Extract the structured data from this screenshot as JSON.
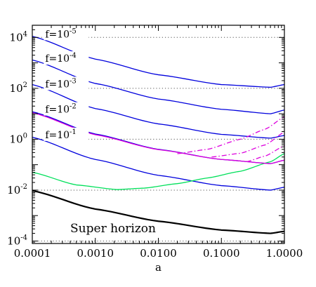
{
  "chart_data": {
    "type": "line",
    "title": "",
    "xlabel": "a",
    "ylabel": "",
    "x_scale": "log",
    "y_scale": "log",
    "xlim": [
      0.0001,
      1.0
    ],
    "ylim": [
      8e-05,
      30000
    ],
    "x_ticks": [
      {
        "value": 0.0001,
        "label": "0.0001"
      },
      {
        "value": 0.001,
        "label": "0.0010"
      },
      {
        "value": 0.01,
        "label": "0.0100"
      },
      {
        "value": 0.1,
        "label": "0.1000"
      },
      {
        "value": 1.0,
        "label": "1.0000"
      }
    ],
    "y_ticks": [
      {
        "value": 0.0001,
        "base": "10",
        "exp": "-4"
      },
      {
        "value": 0.01,
        "base": "10",
        "exp": "-2"
      },
      {
        "value": 1,
        "base": "10",
        "exp": "0"
      },
      {
        "value": 100,
        "base": "10",
        "exp": "2"
      },
      {
        "value": 10000,
        "base": "10",
        "exp": "4"
      }
    ],
    "reference_lines": {
      "style": "dotted",
      "color": "#555555",
      "values": [
        0.0001,
        0.01,
        1,
        100,
        10000
      ]
    },
    "series": [
      {
        "color": "#0000dd",
        "style": "solid",
        "x": [
          0.0001,
          0.001,
          0.01,
          0.1,
          0.6,
          1.0
        ],
        "y": [
          11000,
          1400,
          340,
          140,
          110,
          140
        ]
      },
      {
        "color": "#0000dd",
        "style": "solid",
        "x": [
          0.0001,
          0.001,
          0.01,
          0.1,
          0.6,
          1.0
        ],
        "y": [
          1300,
          155,
          38,
          15,
          10,
          14
        ]
      },
      {
        "color": "#0000dd",
        "style": "solid",
        "x": [
          0.0001,
          0.001,
          0.01,
          0.1,
          0.6,
          1.0
        ],
        "y": [
          140,
          16,
          4,
          1.55,
          1.1,
          1.4
        ]
      },
      {
        "color": "#0000dd",
        "style": "solid",
        "x": [
          0.0001,
          0.001,
          0.01,
          0.1,
          0.6,
          1.0
        ],
        "y": [
          12,
          1.6,
          0.4,
          0.16,
          0.11,
          0.15
        ]
      },
      {
        "color": "#0000dd",
        "style": "solid",
        "x": [
          0.0001,
          0.001,
          0.01,
          0.1,
          0.6,
          1.0
        ],
        "y": [
          1.2,
          0.16,
          0.038,
          0.015,
          0.01,
          0.013
        ]
      },
      {
        "color": "#00e05a",
        "style": "solid",
        "x": [
          0.0001,
          0.0005,
          0.0022,
          0.006,
          0.02,
          0.06,
          0.2,
          0.6,
          1.0
        ],
        "y": [
          0.05,
          0.016,
          0.0105,
          0.012,
          0.018,
          0.03,
          0.055,
          0.13,
          0.27
        ]
      },
      {
        "color": "#000000",
        "style": "solid",
        "width": 2.2,
        "x": [
          0.0001,
          0.001,
          0.01,
          0.1,
          0.6,
          1.0
        ],
        "y": [
          0.0095,
          0.0018,
          0.0006,
          0.00027,
          0.0002,
          0.00024
        ]
      },
      {
        "color": "#dd00dd",
        "style": "solid",
        "x": [
          0.0001,
          0.001,
          0.01,
          0.1,
          0.6,
          1.0
        ],
        "y": [
          11,
          1.5,
          0.39,
          0.16,
          0.11,
          0.15
        ]
      },
      {
        "color": "#dd00dd",
        "style": "dashdot",
        "x": [
          0.02,
          0.06,
          0.2,
          0.5,
          1.0
        ],
        "y": [
          0.27,
          0.4,
          1.0,
          2.5,
          7.5
        ]
      },
      {
        "color": "#dd00dd",
        "style": "dashdot",
        "x": [
          0.07,
          0.2,
          0.5,
          1.0
        ],
        "y": [
          0.2,
          0.28,
          0.6,
          1.9
        ]
      },
      {
        "color": "#dd00dd",
        "style": "dashdot",
        "x": [
          0.25,
          0.5,
          1.0
        ],
        "y": [
          0.13,
          0.22,
          0.55
        ]
      }
    ],
    "annotations": [
      {
        "base": "f=10",
        "exp": "-5",
        "x": 0.00016,
        "y": 10000
      },
      {
        "base": "f=10",
        "exp": "-4",
        "x": 0.00016,
        "y": 1100
      },
      {
        "base": "f=10",
        "exp": "-3",
        "x": 0.00016,
        "y": 110
      },
      {
        "base": "f=10",
        "exp": "-2",
        "x": 0.00016,
        "y": 11
      },
      {
        "base": "f=10",
        "exp": "-1",
        "x": 0.00016,
        "y": 1.1
      },
      {
        "text": "Super horizon",
        "x": 0.0004,
        "y": 0.00022,
        "large": true
      }
    ]
  }
}
